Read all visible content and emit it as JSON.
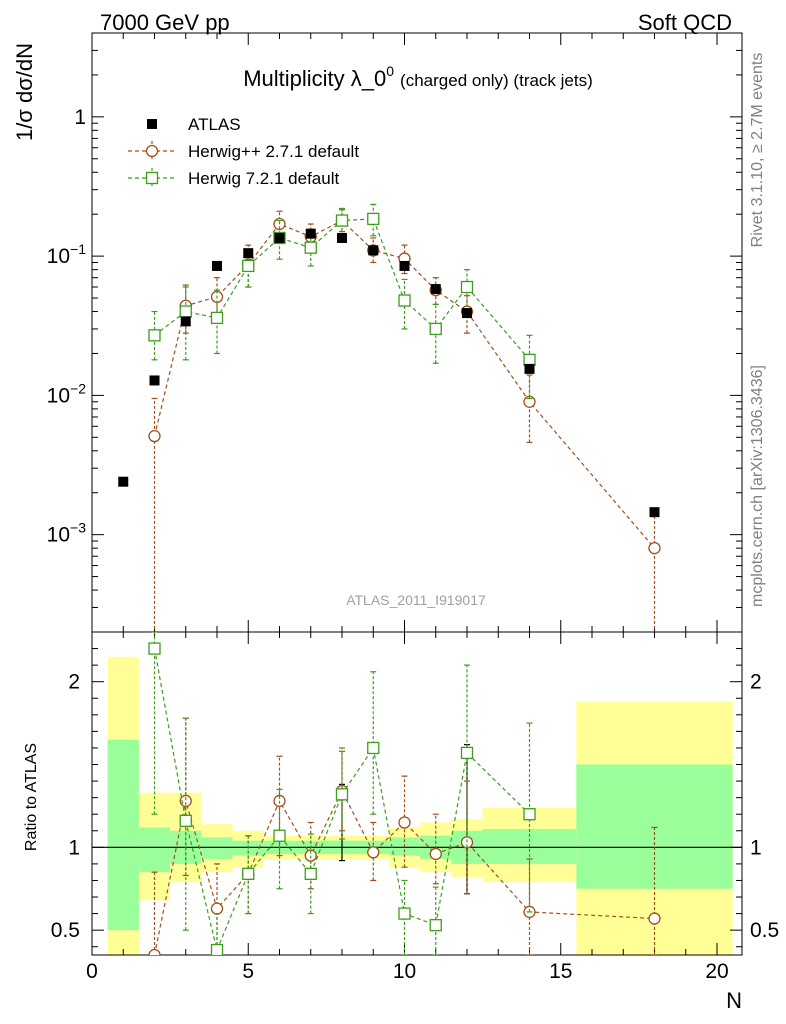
{
  "header": {
    "left": "7000 GeV pp",
    "right": "Soft QCD"
  },
  "side_labels": {
    "top": "Rivet 3.1.10, ≥ 2.7M events",
    "bottom": "mcplots.cern.ch [arXiv:1306.3436]"
  },
  "watermark": "ATLAS_2011_I919017",
  "colors": {
    "data": "#000000",
    "herwigpp": "#a0501e",
    "herwig7": "#3c9d1e",
    "band_inner": "#9aff9a",
    "band_outer": "#ffff96"
  },
  "chart_data": [
    {
      "type": "scatter",
      "title": {
        "main": "Multiplicity λ_0",
        "sup": "0",
        "suffix": "(charged only) (track jets)"
      },
      "ylabel": "1/σ dσ/dN",
      "yscale": "log",
      "ylim": [
        0.0002,
        4
      ],
      "xlim": [
        0,
        20.8
      ],
      "yticks": [
        {
          "value": 0.001,
          "base": "10",
          "exp": "−3"
        },
        {
          "value": 0.01,
          "base": "10",
          "exp": "−2"
        },
        {
          "value": 0.1,
          "base": "10",
          "exp": "−1"
        },
        {
          "value": 1,
          "base": "1",
          "exp": ""
        }
      ],
      "legend": [
        {
          "key": "data",
          "label": "ATLAS"
        },
        {
          "key": "herwigpp",
          "label": "Herwig++ 2.7.1 default"
        },
        {
          "key": "herwig7",
          "label": "Herwig 7.2.1 default"
        }
      ],
      "series": [
        {
          "key": "data",
          "name": "ATLAS",
          "marker": "filled-square",
          "x": [
            1,
            2,
            3,
            4,
            5,
            6,
            7,
            8,
            9,
            10,
            11,
            12,
            14,
            18
          ],
          "y": [
            0.0024,
            0.0128,
            0.034,
            0.085,
            0.105,
            0.135,
            0.145,
            0.135,
            0.11,
            0.085,
            0.058,
            0.039,
            0.0155,
            0.00145
          ]
        },
        {
          "key": "herwigpp",
          "name": "Herwig++ 2.7.1 default",
          "marker": "open-circle",
          "x": [
            2,
            3,
            4,
            5,
            6,
            7,
            8,
            9,
            10,
            11,
            12,
            14,
            18
          ],
          "y": [
            0.0051,
            0.044,
            0.051,
            0.087,
            0.17,
            0.138,
            0.18,
            0.11,
            0.096,
            0.057,
            0.04,
            0.009,
            0.0008
          ],
          "ylo": [
            0.0001,
            0.028,
            0.034,
            0.06,
            0.13,
            0.11,
            0.15,
            0.09,
            0.075,
            0.045,
            0.028,
            0.0046,
            0.0001
          ],
          "yhi": [
            0.0095,
            0.062,
            0.07,
            0.12,
            0.21,
            0.17,
            0.215,
            0.135,
            0.12,
            0.07,
            0.052,
            0.014,
            0.00145
          ]
        },
        {
          "key": "herwig7",
          "name": "Herwig 7.2.1 default",
          "marker": "open-square",
          "x": [
            2,
            3,
            4,
            5,
            6,
            7,
            8,
            9,
            10,
            11,
            12,
            14
          ],
          "y": [
            0.027,
            0.04,
            0.036,
            0.085,
            0.135,
            0.115,
            0.18,
            0.185,
            0.048,
            0.03,
            0.06,
            0.018
          ],
          "ylo": [
            0.018,
            0.018,
            0.02,
            0.06,
            0.095,
            0.085,
            0.14,
            0.14,
            0.03,
            0.017,
            0.04,
            0.0095
          ],
          "yhi": [
            0.04,
            0.06,
            0.057,
            0.11,
            0.18,
            0.15,
            0.22,
            0.235,
            0.068,
            0.045,
            0.08,
            0.027
          ]
        }
      ]
    },
    {
      "type": "scatter",
      "ylabel": "Ratio to ATLAS",
      "xlabel": "N",
      "yscale": "linear",
      "ylim": [
        0.35,
        2.3
      ],
      "xlim": [
        0,
        20.8
      ],
      "xticks": [
        0,
        5,
        10,
        15,
        20
      ],
      "yticks": [
        0.5,
        1,
        2
      ],
      "bands": [
        {
          "x0": 0.5,
          "x1": 1.5,
          "inner": [
            0.5,
            1.65
          ],
          "outer": [
            0.35,
            2.15
          ]
        },
        {
          "x0": 1.5,
          "x1": 2.5,
          "inner": [
            0.85,
            1.12
          ],
          "outer": [
            0.68,
            1.33
          ]
        },
        {
          "x0": 2.5,
          "x1": 3.5,
          "inner": [
            0.9,
            1.1
          ],
          "outer": [
            0.79,
            1.33
          ]
        },
        {
          "x0": 3.5,
          "x1": 4.5,
          "inner": [
            0.93,
            1.06
          ],
          "outer": [
            0.85,
            1.14
          ]
        },
        {
          "x0": 4.5,
          "x1": 5.5,
          "inner": [
            0.95,
            1.04
          ],
          "outer": [
            0.88,
            1.1
          ]
        },
        {
          "x0": 5.5,
          "x1": 9.5,
          "inner": [
            0.96,
            1.04
          ],
          "outer": [
            0.93,
            1.07
          ]
        },
        {
          "x0": 9.5,
          "x1": 10.5,
          "inner": [
            0.95,
            1.06
          ],
          "outer": [
            0.88,
            1.12
          ]
        },
        {
          "x0": 10.5,
          "x1": 11.5,
          "inner": [
            0.93,
            1.07
          ],
          "outer": [
            0.85,
            1.15
          ]
        },
        {
          "x0": 11.5,
          "x1": 12.5,
          "inner": [
            0.9,
            1.1
          ],
          "outer": [
            0.82,
            1.17
          ]
        },
        {
          "x0": 12.5,
          "x1": 15.5,
          "inner": [
            0.9,
            1.11
          ],
          "outer": [
            0.79,
            1.24
          ]
        },
        {
          "x0": 15.5,
          "x1": 20.5,
          "inner": [
            0.75,
            1.5
          ],
          "outer": [
            0.35,
            1.88
          ]
        }
      ],
      "series": [
        {
          "key": "herwigpp",
          "name": "Herwig++ 2.7.1 default",
          "marker": "open-circle",
          "x": [
            2,
            3,
            4,
            5,
            6,
            7,
            8,
            9,
            10,
            11,
            12,
            14,
            18
          ],
          "y": [
            0.35,
            1.28,
            0.63,
            0.84,
            1.28,
            0.95,
            1.34,
            0.97,
            1.15,
            0.96,
            1.03,
            0.61,
            0.57
          ],
          "ylo": [
            0.35,
            0.83,
            0.35,
            0.6,
            0.95,
            0.75,
            1.1,
            0.8,
            0.88,
            0.78,
            0.72,
            0.35,
            0.35
          ],
          "yhi": [
            0.85,
            1.78,
            0.9,
            1.07,
            1.55,
            1.15,
            1.58,
            1.15,
            1.43,
            1.2,
            1.4,
            0.93,
            1.12
          ]
        },
        {
          "key": "herwig7",
          "name": "Herwig 7.2.1 default",
          "marker": "open-square",
          "x": [
            2,
            3,
            4,
            5,
            6,
            7,
            8,
            9,
            10,
            11,
            12,
            14
          ],
          "y": [
            2.2,
            1.16,
            0.38,
            0.84,
            1.07,
            0.84,
            1.32,
            1.6,
            0.6,
            0.53,
            1.57,
            1.2
          ],
          "ylo": [
            1.2,
            0.5,
            0.35,
            0.6,
            0.75,
            0.6,
            1.05,
            1.2,
            0.35,
            0.35,
            1.0,
            0.61
          ],
          "yhi": [
            2.3,
            1.78,
            0.6,
            1.07,
            1.35,
            1.08,
            1.6,
            2.06,
            0.8,
            0.76,
            2.1,
            1.75
          ]
        },
        {
          "key": "data",
          "name": "ATLAS",
          "marker": "errorbar-only",
          "x": [
            8,
            12
          ],
          "y": [
            1.0,
            1.0
          ],
          "ylo": [
            0.92,
            0.72
          ],
          "yhi": [
            1.38,
            1.62
          ]
        }
      ]
    }
  ]
}
